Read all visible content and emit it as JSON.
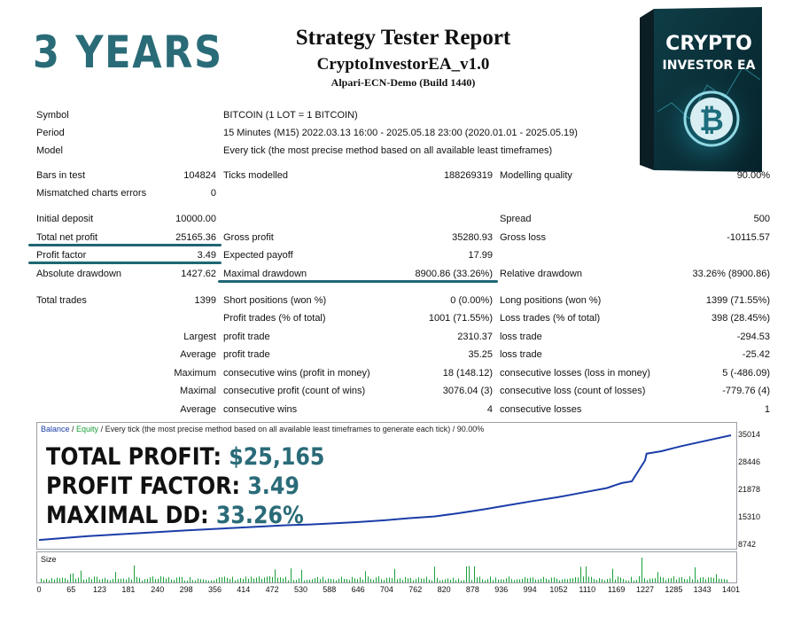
{
  "promo": {
    "years": "3 YEARS"
  },
  "header": {
    "title": "Strategy Tester Report",
    "ea_name": "CryptoInvestorEA_v1.0",
    "server": "Alpari-ECN-Demo (Build 1440)"
  },
  "product_box": {
    "line1": "CRYPTO",
    "line2": "INVESTOR EA",
    "symbol": "₿"
  },
  "report": {
    "symbol_label": "Symbol",
    "symbol_value": "BITCOIN (1 LOT = 1 BITCOIN)",
    "period_label": "Period",
    "period_value": "15 Minutes (M15) 2022.03.13 16:00 - 2025.05.18 23:00 (2020.01.01 - 2025.05.19)",
    "model_label": "Model",
    "model_value": "Every tick (the most precise method based on all available least timeframes)",
    "bars_label": "Bars in test",
    "bars_value": "104824",
    "ticks_label": "Ticks modelled",
    "ticks_value": "188269319",
    "quality_label": "Modelling quality",
    "quality_value": "90.00%",
    "mismatch_label": "Mismatched charts errors",
    "mismatch_value": "0",
    "deposit_label": "Initial deposit",
    "deposit_value": "10000.00",
    "spread_label": "Spread",
    "spread_value": "500",
    "netprofit_label": "Total net profit",
    "netprofit_value": "25165.36",
    "grossprofit_label": "Gross profit",
    "grossprofit_value": "35280.93",
    "grossloss_label": "Gross loss",
    "grossloss_value": "-10115.57",
    "pf_label": "Profit factor",
    "pf_value": "3.49",
    "payoff_label": "Expected payoff",
    "payoff_value": "17.99",
    "absdd_label": "Absolute drawdown",
    "absdd_value": "1427.62",
    "maxdd_label": "Maximal drawdown",
    "maxdd_value": "8900.86 (33.26%)",
    "reldd_label": "Relative drawdown",
    "reldd_value": "33.26% (8900.86)",
    "trades_label": "Total trades",
    "trades_value": "1399",
    "short_label": "Short positions (won %)",
    "short_value": "0 (0.00%)",
    "long_label": "Long positions (won %)",
    "long_value": "1399 (71.55%)",
    "ptrades_label": "Profit trades (% of total)",
    "ptrades_value": "1001 (71.55%)",
    "ltrades_label": "Loss trades (% of total)",
    "ltrades_value": "398 (28.45%)",
    "largest": "Largest",
    "average": "Average",
    "maximum": "Maximum",
    "maximal": "Maximal",
    "lpt_label": "profit trade",
    "lpt_value": "2310.37",
    "llt_label": "loss trade",
    "llt_value": "-294.53",
    "apt_label": "profit trade",
    "apt_value": "35.25",
    "alt_label": "loss trade",
    "alt_value": "-25.42",
    "mcw_label": "consecutive wins (profit in money)",
    "mcw_value": "18 (148.12)",
    "mcl_label": "consecutive losses (loss in money)",
    "mcl_value": "5 (-486.09)",
    "mcp_label": "consecutive profit (count of wins)",
    "mcp_value": "3076.04 (3)",
    "mclc_label": "consecutive loss (count of losses)",
    "mclc_value": "-779.76 (4)",
    "acw_label": "consecutive wins",
    "acw_value": "4",
    "acl_label": "consecutive losses",
    "acl_value": "1"
  },
  "overlay": {
    "profit_label": "TOTAL PROFIT:",
    "profit_value": "$25,165",
    "pf_label": "PROFIT FACTOR:",
    "pf_value": "3.49",
    "dd_label": "MAXIMAL DD:",
    "dd_value": "33.26%"
  },
  "chart_legend": {
    "balance": "Balance",
    "sep1": " / ",
    "equity": "Equity",
    "rest": " / Every tick (the most precise method based on all available least timeframes to generate each tick) / 90.00%"
  },
  "volume_label": "Size",
  "colors": {
    "accent": "#2a6b78",
    "balance": "#1a3da8",
    "volume": "#19a03a"
  },
  "chart_data": {
    "type": "line",
    "x": [
      0,
      100,
      200,
      300,
      400,
      500,
      550,
      600,
      650,
      700,
      750,
      800,
      850,
      900,
      950,
      1000,
      1050,
      1100,
      1150,
      1169,
      1180,
      1200,
      1227,
      1230,
      1260,
      1300,
      1350,
      1401
    ],
    "series": [
      {
        "name": "Balance",
        "values": [
          10000,
          10900,
          11600,
          12300,
          12900,
          13500,
          13700,
          14000,
          14300,
          14700,
          15200,
          15600,
          16400,
          17300,
          18300,
          19300,
          20200,
          21300,
          22400,
          23200,
          23600,
          24000,
          29000,
          30600,
          31200,
          32400,
          33700,
          35014
        ]
      }
    ],
    "yticks": [
      "35014",
      "28446",
      "21878",
      "15310",
      "8742"
    ],
    "xticks": [
      "0",
      "65",
      "123",
      "181",
      "240",
      "298",
      "356",
      "414",
      "472",
      "530",
      "588",
      "646",
      "704",
      "762",
      "820",
      "878",
      "936",
      "994",
      "1052",
      "1110",
      "1169",
      "1227",
      "1285",
      "1343",
      "1401"
    ],
    "ylim": [
      8742,
      35014
    ],
    "xlim": [
      0,
      1401
    ]
  }
}
